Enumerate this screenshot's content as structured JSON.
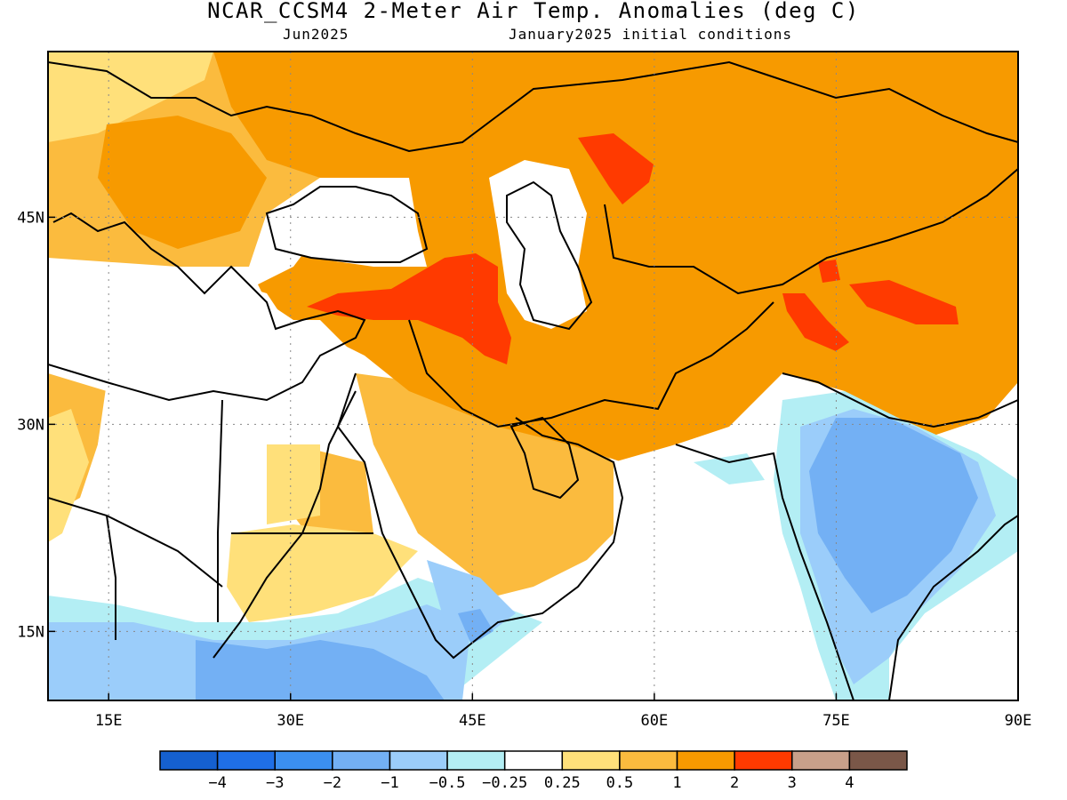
{
  "title": "NCAR_CCSM4 2-Meter Air Temp. Anomalies (deg C)",
  "subtitle_left": "Jun2025",
  "subtitle_right": "January2025 initial conditions",
  "map": {
    "lon_range": [
      10,
      90
    ],
    "lat_range": [
      10,
      57
    ],
    "lon_ticks": [
      {
        "value": 15,
        "label": "15E"
      },
      {
        "value": 30,
        "label": "30E"
      },
      {
        "value": 45,
        "label": "45E"
      },
      {
        "value": 60,
        "label": "60E"
      },
      {
        "value": 75,
        "label": "75E"
      },
      {
        "value": 90,
        "label": "90E"
      }
    ],
    "lat_ticks": [
      {
        "value": 45,
        "label": "45N"
      },
      {
        "value": 30,
        "label": "30N"
      },
      {
        "value": 15,
        "label": "15N"
      }
    ],
    "grid": true
  },
  "colorbar": {
    "colors": [
      "#1560d0",
      "#1f6fe6",
      "#3b8ff0",
      "#73b0f4",
      "#9bcdfa",
      "#b3eef4",
      "#ffffff",
      "#ffe07a",
      "#fbbb3e",
      "#f79a00",
      "#ff3a00",
      "#c8a08a",
      "#7a5748"
    ],
    "labels": [
      "−4",
      "−3",
      "−2",
      "−1",
      "−0.5",
      "−0.25",
      "0.25",
      "0.5",
      "1",
      "2",
      "3",
      "4"
    ]
  },
  "palette": {
    "land_bg": "#ffffff",
    "neg_025": "#b3eef4",
    "neg_05": "#9bcdfa",
    "neg_1": "#73b0f4",
    "pos_025": "#ffe07a",
    "pos_05": "#fbbb3e",
    "pos_1": "#f79a00",
    "pos_2": "#ff3a00"
  }
}
